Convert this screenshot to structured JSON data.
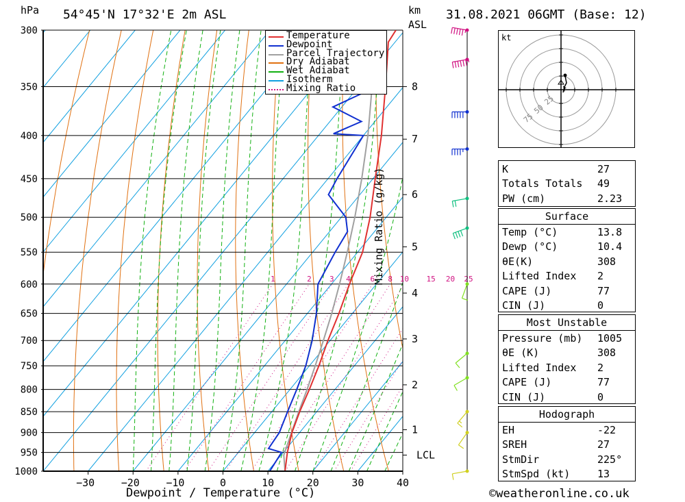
{
  "header": {
    "hpa_label": "hPa",
    "location": "54°45'N  17°32'E  2m  ASL",
    "km_label": "km",
    "asl_label": "ASL",
    "datetime": "31.08.2021  06GMT  (Base: 12)"
  },
  "footer": {
    "xlabel": "Dewpoint / Temperature (°C)",
    "ylabel_right": "Mixing Ratio (g/kg)",
    "copyright": "©weatheronline.co.uk"
  },
  "colors": {
    "temperature": "#e03030",
    "dewpoint": "#1030d0",
    "parcel": "#a0a0a0",
    "dry_adiabat": "#e07010",
    "wet_adiabat": "#10b010",
    "isotherm": "#10a0e0",
    "mixing_ratio": "#d01080"
  },
  "chart_data": {
    "type": "line",
    "title": "54°45'N  17°32'E  2m  ASL",
    "xlabel": "Dewpoint / Temperature (°C)",
    "ylabel": "hPa",
    "y_scale": "log-pressure",
    "xlim": [
      -40,
      40
    ],
    "ylim": [
      1000,
      300
    ],
    "pressure_ticks": [
      300,
      350,
      400,
      450,
      500,
      550,
      600,
      650,
      700,
      750,
      800,
      850,
      900,
      950,
      1000
    ],
    "temp_ticks": [
      -30,
      -20,
      -10,
      0,
      10,
      20,
      30,
      40
    ],
    "km_ticks": [
      {
        "label": "8",
        "p": 350
      },
      {
        "label": "7",
        "p": 404
      },
      {
        "label": "6",
        "p": 470
      },
      {
        "label": "5",
        "p": 542
      },
      {
        "label": "4",
        "p": 615
      },
      {
        "label": "3",
        "p": 697
      },
      {
        "label": "2",
        "p": 790
      },
      {
        "label": "1",
        "p": 893
      },
      {
        "label": "LCL",
        "p": 957
      }
    ],
    "mixing_ratio_labels": [
      "1",
      "2",
      "3",
      "4",
      "6",
      "8",
      "10",
      "15",
      "20",
      "25"
    ],
    "legend": [
      "Temperature",
      "Dewpoint",
      "Parcel Trajectory",
      "Dry Adiabat",
      "Wet Adiabat",
      "Isotherm",
      "Mixing Ratio"
    ],
    "legend_position": "top-right",
    "series": [
      {
        "name": "Temperature",
        "points": [
          [
            1000,
            13.8
          ],
          [
            950,
            10.9
          ],
          [
            900,
            8.3
          ],
          [
            850,
            6.2
          ],
          [
            800,
            4.3
          ],
          [
            750,
            2.1
          ],
          [
            700,
            -0.5
          ],
          [
            650,
            -3.0
          ],
          [
            600,
            -6.0
          ],
          [
            550,
            -8.9
          ],
          [
            500,
            -13.6
          ],
          [
            450,
            -19.5
          ],
          [
            400,
            -26.0
          ],
          [
            350,
            -34.0
          ],
          [
            310,
            -41.5
          ],
          [
            300,
            -42.0
          ]
        ]
      },
      {
        "name": "Dewpoint",
        "points": [
          [
            1000,
            10.4
          ],
          [
            950,
            9.6
          ],
          [
            940,
            6.0
          ],
          [
            900,
            5.5
          ],
          [
            850,
            3.5
          ],
          [
            800,
            1.5
          ],
          [
            750,
            -0.8
          ],
          [
            700,
            -4.0
          ],
          [
            650,
            -8.0
          ],
          [
            600,
            -13.0
          ],
          [
            550,
            -15.0
          ],
          [
            520,
            -16.0
          ],
          [
            500,
            -19.0
          ],
          [
            470,
            -27.0
          ],
          [
            450,
            -28.0
          ],
          [
            400,
            -30.0
          ],
          [
            398,
            -37.0
          ],
          [
            385,
            -33.0
          ],
          [
            370,
            -42.0
          ],
          [
            350,
            -36.0
          ],
          [
            310,
            -50.0
          ],
          [
            300,
            -58.0
          ]
        ]
      },
      {
        "name": "Parcel Trajectory",
        "points": [
          [
            1000,
            13.8
          ],
          [
            957,
            10.6
          ],
          [
            900,
            8.2
          ],
          [
            850,
            6.0
          ],
          [
            800,
            3.8
          ],
          [
            750,
            1.3
          ],
          [
            700,
            -1.5
          ],
          [
            650,
            -4.6
          ],
          [
            600,
            -8.2
          ],
          [
            550,
            -12.3
          ],
          [
            500,
            -17.0
          ],
          [
            450,
            -22.5
          ],
          [
            400,
            -29.0
          ],
          [
            350,
            -37.0
          ],
          [
            300,
            -46.5
          ]
        ]
      }
    ],
    "wind_barbs_kt": [
      {
        "p": 300,
        "dir": 280,
        "spd": 55
      },
      {
        "p": 325,
        "dir": 260,
        "spd": 65
      },
      {
        "p": 375,
        "dir": 270,
        "spd": 50
      },
      {
        "p": 415,
        "dir": 270,
        "spd": 45
      },
      {
        "p": 475,
        "dir": 260,
        "spd": 20
      },
      {
        "p": 515,
        "dir": 250,
        "spd": 40
      },
      {
        "p": 600,
        "dir": 200,
        "spd": 10
      },
      {
        "p": 725,
        "dir": 230,
        "spd": 10
      },
      {
        "p": 775,
        "dir": 240,
        "spd": 10
      },
      {
        "p": 850,
        "dir": 220,
        "spd": 15
      },
      {
        "p": 900,
        "dir": 215,
        "spd": 10
      },
      {
        "p": 1000,
        "dir": 260,
        "spd": 10
      }
    ],
    "hodograph": {
      "unit": "kt",
      "ring_labels": [
        "25",
        "50",
        "75"
      ]
    }
  },
  "indices": {
    "basic": [
      {
        "label": "K",
        "value": "27"
      },
      {
        "label": "Totals Totals",
        "value": "49"
      },
      {
        "label": "PW (cm)",
        "value": "2.23"
      }
    ],
    "surface": {
      "title": "Surface",
      "rows": [
        {
          "label": "Temp (°C)",
          "value": "13.8"
        },
        {
          "label": "Dewp (°C)",
          "value": "10.4"
        },
        {
          "label": "θE(K)",
          "value": "308"
        },
        {
          "label": "Lifted Index",
          "value": "2"
        },
        {
          "label": "CAPE (J)",
          "value": "77"
        },
        {
          "label": "CIN (J)",
          "value": "0"
        }
      ]
    },
    "most_unstable": {
      "title": "Most Unstable",
      "rows": [
        {
          "label": "Pressure (mb)",
          "value": "1005"
        },
        {
          "label": "θE (K)",
          "value": "308"
        },
        {
          "label": "Lifted Index",
          "value": "2"
        },
        {
          "label": "CAPE (J)",
          "value": "77"
        },
        {
          "label": "CIN (J)",
          "value": "0"
        }
      ]
    },
    "hodograph": {
      "title": "Hodograph",
      "rows": [
        {
          "label": "EH",
          "value": "-22"
        },
        {
          "label": "SREH",
          "value": "27"
        },
        {
          "label": "StmDir",
          "value": "225°"
        },
        {
          "label": "StmSpd (kt)",
          "value": "13"
        }
      ]
    }
  }
}
